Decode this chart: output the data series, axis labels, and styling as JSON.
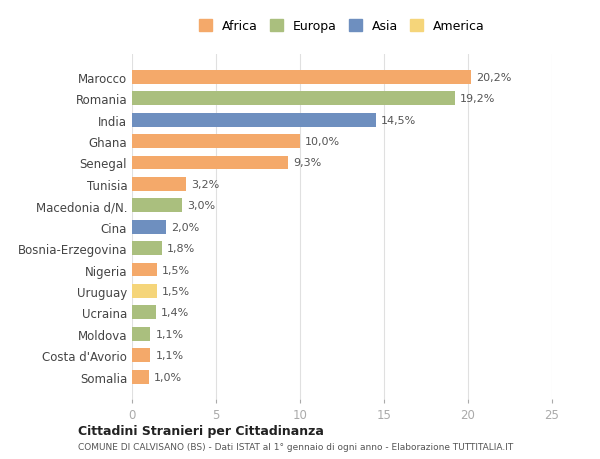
{
  "countries": [
    "Marocco",
    "Romania",
    "India",
    "Ghana",
    "Senegal",
    "Tunisia",
    "Macedonia d/N.",
    "Cina",
    "Bosnia-Erzegovina",
    "Nigeria",
    "Uruguay",
    "Ucraina",
    "Moldova",
    "Costa d'Avorio",
    "Somalia"
  ],
  "values": [
    20.2,
    19.2,
    14.5,
    10.0,
    9.3,
    3.2,
    3.0,
    2.0,
    1.8,
    1.5,
    1.5,
    1.4,
    1.1,
    1.1,
    1.0
  ],
  "continents": [
    "Africa",
    "Europa",
    "Asia",
    "Africa",
    "Africa",
    "Africa",
    "Europa",
    "Asia",
    "Europa",
    "Africa",
    "America",
    "Europa",
    "Europa",
    "Africa",
    "Africa"
  ],
  "labels": [
    "20,2%",
    "19,2%",
    "14,5%",
    "10,0%",
    "9,3%",
    "3,2%",
    "3,0%",
    "2,0%",
    "1,8%",
    "1,5%",
    "1,5%",
    "1,4%",
    "1,1%",
    "1,1%",
    "1,0%"
  ],
  "continent_colors": {
    "Africa": "#F4A96A",
    "Europa": "#AABF7E",
    "Asia": "#6E8FBF",
    "America": "#F5D57A"
  },
  "legend_order": [
    "Africa",
    "Europa",
    "Asia",
    "America"
  ],
  "xlim": [
    0,
    25
  ],
  "xticks": [
    0,
    5,
    10,
    15,
    20,
    25
  ],
  "title_bold": "Cittadini Stranieri per Cittadinanza",
  "subtitle": "COMUNE DI CALVISANO (BS) - Dati ISTAT al 1° gennaio di ogni anno - Elaborazione TUTTITALIA.IT",
  "background_color": "#ffffff",
  "bar_height": 0.65,
  "grid_color": "#e0e0e0"
}
